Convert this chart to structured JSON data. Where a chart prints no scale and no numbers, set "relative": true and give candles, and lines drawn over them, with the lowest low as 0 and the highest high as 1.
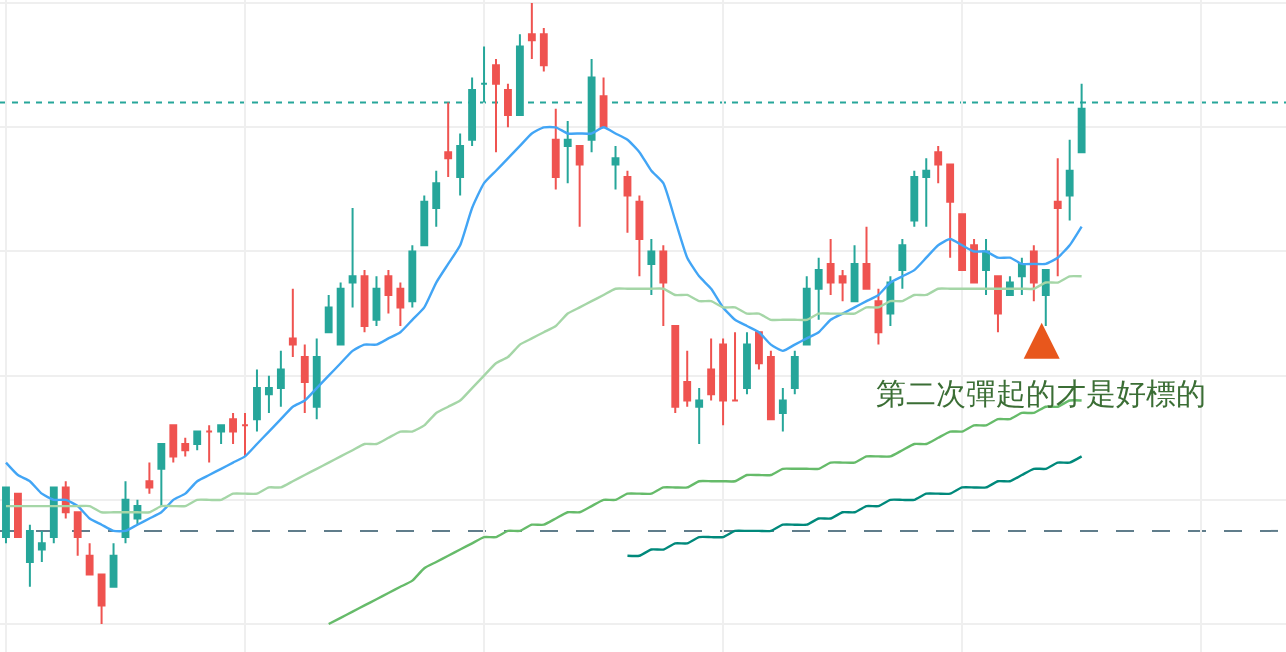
{
  "chart_data": {
    "type": "candlestick",
    "relative": true,
    "grid": true,
    "marker": "none",
    "categories": [
      null,
      null,
      null,
      null,
      null,
      null,
      null,
      null,
      null,
      null,
      null,
      null,
      null,
      null,
      null,
      null,
      null,
      null,
      null,
      null,
      null,
      null,
      null,
      null,
      null,
      null,
      null,
      null,
      null,
      null,
      null,
      null,
      null,
      null,
      null,
      null,
      null,
      null,
      null,
      null,
      null,
      null,
      null,
      null,
      null,
      null,
      null,
      null,
      null,
      null,
      null,
      null,
      null,
      null,
      null,
      null,
      null,
      null,
      null,
      null,
      null,
      null,
      null,
      null,
      null,
      null,
      null,
      null,
      null,
      null,
      null,
      null,
      null,
      null,
      null,
      null,
      null,
      null,
      null,
      null,
      null,
      null,
      null,
      null,
      null,
      null,
      null,
      null,
      null,
      null,
      null
    ],
    "ohlc": [
      [
        0.14,
        0.22,
        0.13,
        0.22
      ],
      [
        0.21,
        0.21,
        0.14,
        0.14
      ],
      [
        0.1,
        0.16,
        0.06,
        0.15
      ],
      [
        0.12,
        0.15,
        0.1,
        0.13
      ],
      [
        0.14,
        0.22,
        0.13,
        0.22
      ],
      [
        0.22,
        0.23,
        0.17,
        0.18
      ],
      [
        0.18,
        0.18,
        0.11,
        0.14
      ],
      [
        0.11,
        0.13,
        0.08,
        0.08
      ],
      [
        0.08,
        0.08,
        0,
        0.03
      ],
      [
        0.06,
        0.13,
        0.06,
        0.11
      ],
      [
        0.14,
        0.23,
        0.13,
        0.2
      ],
      [
        0.17,
        0.2,
        0.16,
        0.19
      ],
      [
        0.23,
        0.26,
        0.21,
        0.22
      ],
      [
        0.25,
        0.29,
        0.19,
        0.29
      ],
      [
        0.32,
        0.32,
        0.26,
        0.27
      ],
      [
        0.29,
        0.3,
        0.27,
        0.28
      ],
      [
        0.29,
        0.31,
        0.28,
        0.31
      ],
      [
        0.31,
        0.32,
        0.26,
        0.31
      ],
      [
        0.31,
        0.32,
        0.29,
        0.32
      ],
      [
        0.33,
        0.34,
        0.29,
        0.31
      ],
      [
        0.32,
        0.34,
        0.27,
        0.32
      ],
      [
        0.33,
        0.41,
        0.31,
        0.38
      ],
      [
        0.37,
        0.4,
        0.34,
        0.38
      ],
      [
        0.38,
        0.44,
        0.35,
        0.41
      ],
      [
        0.46,
        0.54,
        0.43,
        0.45
      ],
      [
        0.43,
        0.45,
        0.34,
        0.39
      ],
      [
        0.35,
        0.46,
        0.33,
        0.43
      ],
      [
        0.47,
        0.53,
        0.47,
        0.51
      ],
      [
        0.45,
        0.55,
        0.45,
        0.54
      ],
      [
        0.55,
        0.67,
        0.51,
        0.56
      ],
      [
        0.56,
        0.57,
        0.47,
        0.48
      ],
      [
        0.49,
        0.56,
        0.48,
        0.54
      ],
      [
        0.56,
        0.57,
        0.5,
        0.53
      ],
      [
        0.54,
        0.55,
        0.48,
        0.51
      ],
      [
        0.52,
        0.61,
        0.51,
        0.6
      ],
      [
        0.61,
        0.69,
        0.61,
        0.68
      ],
      [
        0.67,
        0.73,
        0.64,
        0.71
      ],
      [
        0.76,
        0.84,
        0.72,
        0.75
      ],
      [
        0.72,
        0.79,
        0.69,
        0.77
      ],
      [
        0.78,
        0.88,
        0.77,
        0.86
      ],
      [
        0.87,
        0.93,
        0.84,
        0.87
      ],
      [
        0.9,
        0.91,
        0.76,
        0.87
      ],
      [
        0.86,
        0.87,
        0.8,
        0.82
      ],
      [
        0.82,
        0.95,
        0.82,
        0.93
      ],
      [
        0.95,
        1,
        0.91,
        0.94
      ],
      [
        0.95,
        0.96,
        0.89,
        0.9
      ],
      [
        0.78,
        0.83,
        0.7,
        0.72
      ],
      [
        0.77,
        0.81,
        0.71,
        0.78
      ],
      [
        0.77,
        0.77,
        0.64,
        0.74
      ],
      [
        0.78,
        0.91,
        0.76,
        0.88
      ],
      [
        0.85,
        0.88,
        0.8,
        0.8
      ],
      [
        0.74,
        0.77,
        0.7,
        0.75
      ],
      [
        0.72,
        0.73,
        0.63,
        0.69
      ],
      [
        0.68,
        0.69,
        0.56,
        0.62
      ],
      [
        0.58,
        0.62,
        0.53,
        0.6
      ],
      [
        0.6,
        0.61,
        0.48,
        0.55
      ],
      [
        0.48,
        0.48,
        0.34,
        0.35
      ],
      [
        0.39,
        0.44,
        0.35,
        0.36
      ],
      [
        0.35,
        0.38,
        0.29,
        0.36
      ],
      [
        0.41,
        0.46,
        0.36,
        0.37
      ],
      [
        0.45,
        0.46,
        0.32,
        0.36
      ],
      [
        0.36,
        0.47,
        0.36,
        0.36
      ],
      [
        0.38,
        0.47,
        0.37,
        0.45
      ],
      [
        0.47,
        0.47,
        0.41,
        0.42
      ],
      [
        0.43,
        0.44,
        0.33,
        0.33
      ],
      [
        0.34,
        0.38,
        0.31,
        0.36
      ],
      [
        0.38,
        0.44,
        0.37,
        0.43
      ],
      [
        0.45,
        0.56,
        0.45,
        0.54
      ],
      [
        0.54,
        0.59,
        0.49,
        0.57
      ],
      [
        0.58,
        0.62,
        0.53,
        0.55
      ],
      [
        0.56,
        0.57,
        0.52,
        0.55
      ],
      [
        0.52,
        0.61,
        0.52,
        0.58
      ],
      [
        0.58,
        0.64,
        0.54,
        0.54
      ],
      [
        0.52,
        0.54,
        0.45,
        0.47
      ],
      [
        0.5,
        0.56,
        0.48,
        0.55
      ],
      [
        0.57,
        0.62,
        0.54,
        0.61
      ],
      [
        0.65,
        0.73,
        0.64,
        0.72
      ],
      [
        0.72,
        0.75,
        0.64,
        0.73
      ],
      [
        0.76,
        0.77,
        0.71,
        0.74
      ],
      [
        0.74,
        0.74,
        0.59,
        0.68
      ],
      [
        0.66,
        0.66,
        0.57,
        0.57
      ],
      [
        0.61,
        0.62,
        0.55,
        0.55
      ],
      [
        0.57,
        0.62,
        0.53,
        0.6
      ],
      [
        0.56,
        0.56,
        0.47,
        0.5
      ],
      [
        0.53,
        0.56,
        0.53,
        0.55
      ],
      [
        0.56,
        0.59,
        0.53,
        0.58
      ],
      [
        0.6,
        0.61,
        0.52,
        0.55
      ],
      [
        0.53,
        0.57,
        0.48,
        0.57
      ],
      [
        0.68,
        0.75,
        0.56,
        0.67
      ],
      [
        0.69,
        0.78,
        0.65,
        0.73
      ],
      [
        0.76,
        0.87,
        0.76,
        0.83
      ]
    ],
    "colors": [
      "#26a69a",
      "#ef5350",
      "#26a69a",
      "#26a69a",
      "#26a69a",
      "#ef5350",
      "#ef5350",
      "#ef5350",
      "#ef5350",
      "#26a69a",
      "#26a69a",
      "#26a69a",
      "#ef5350",
      "#26a69a",
      "#ef5350",
      "#ef5350",
      "#26a69a",
      "#ef5350",
      "#26a69a",
      "#ef5350",
      "#ef5350",
      "#26a69a",
      "#26a69a",
      "#26a69a",
      "#ef5350",
      "#ef5350",
      "#26a69a",
      "#26a69a",
      "#26a69a",
      "#26a69a",
      "#ef5350",
      "#26a69a",
      "#ef5350",
      "#ef5350",
      "#26a69a",
      "#26a69a",
      "#26a69a",
      "#ef5350",
      "#26a69a",
      "#26a69a",
      "#26a69a",
      "#ef5350",
      "#ef5350",
      "#26a69a",
      "#ef5350",
      "#ef5350",
      "#ef5350",
      "#26a69a",
      "#ef5350",
      "#26a69a",
      "#ef5350",
      "#26a69a",
      "#ef5350",
      "#ef5350",
      "#26a69a",
      "#ef5350",
      "#ef5350",
      "#ef5350",
      "#26a69a",
      "#ef5350",
      "#ef5350",
      "#ef5350",
      "#26a69a",
      "#ef5350",
      "#ef5350",
      "#26a69a",
      "#26a69a",
      "#26a69a",
      "#26a69a",
      "#ef5350",
      "#ef5350",
      "#26a69a",
      "#ef5350",
      "#ef5350",
      "#26a69a",
      "#26a69a",
      "#26a69a",
      "#26a69a",
      "#ef5350",
      "#ef5350",
      "#ef5350",
      "#ef5350",
      "#26a69a",
      "#ef5350",
      "#26a69a",
      "#26a69a",
      "#ef5350",
      "#26a69a",
      "#ef5350",
      "#26a69a",
      "#26a69a"
    ],
    "series": [
      {
        "type": "line",
        "color": "#42a5f5",
        "values": [
          0.26,
          0.24,
          0.23,
          0.21,
          0.2,
          0.2,
          0.19,
          0.17,
          0.16,
          0.15,
          0.15,
          0.16,
          0.17,
          0.18,
          0.2,
          0.21,
          0.23,
          0.24,
          0.25,
          0.26,
          0.27,
          0.29,
          0.31,
          0.33,
          0.35,
          0.36,
          0.38,
          0.4,
          0.42,
          0.44,
          0.45,
          0.45,
          0.46,
          0.47,
          0.49,
          0.51,
          0.55,
          0.58,
          0.61,
          0.67,
          0.71,
          0.73,
          0.75,
          0.77,
          0.79,
          0.8,
          0.8,
          0.79,
          0.79,
          0.79,
          0.8,
          0.79,
          0.78,
          0.76,
          0.73,
          0.71,
          0.65,
          0.59,
          0.56,
          0.54,
          0.51,
          0.49,
          0.48,
          0.47,
          0.45,
          0.44,
          0.45,
          0.46,
          0.47,
          0.49,
          0.5,
          0.51,
          0.52,
          0.53,
          0.55,
          0.56,
          0.57,
          0.59,
          0.61,
          0.62,
          0.61,
          0.6,
          0.6,
          0.59,
          0.59,
          0.58,
          0.58,
          0.58,
          0.59,
          0.61,
          0.64
        ]
      },
      {
        "type": "line",
        "color": "#a5d6a7",
        "values": [
          0.19,
          0.19,
          0.19,
          0.19,
          0.19,
          0.19,
          0.19,
          0.19,
          0.18,
          0.18,
          0.18,
          0.18,
          0.18,
          0.19,
          0.19,
          0.19,
          0.2,
          0.2,
          0.2,
          0.21,
          0.21,
          0.21,
          0.22,
          0.22,
          0.23,
          0.24,
          0.25,
          0.26,
          0.27,
          0.28,
          0.29,
          0.29,
          0.3,
          0.31,
          0.31,
          0.32,
          0.34,
          0.35,
          0.36,
          0.38,
          0.4,
          0.42,
          0.43,
          0.45,
          0.46,
          0.47,
          0.48,
          0.5,
          0.51,
          0.52,
          0.53,
          0.54,
          0.54,
          0.54,
          0.54,
          0.54,
          0.53,
          0.53,
          0.52,
          0.52,
          0.51,
          0.51,
          0.5,
          0.5,
          0.49,
          0.49,
          0.49,
          0.49,
          0.5,
          0.5,
          0.5,
          0.5,
          0.51,
          0.51,
          0.52,
          0.52,
          0.53,
          0.53,
          0.54,
          0.54,
          0.54,
          0.54,
          0.54,
          0.54,
          0.54,
          0.54,
          0.54,
          0.55,
          0.55,
          0.56,
          0.56
        ]
      },
      {
        "type": "line",
        "color": "#66bb6a",
        "values": [
          null,
          null,
          null,
          null,
          null,
          null,
          null,
          null,
          null,
          null,
          null,
          null,
          null,
          null,
          null,
          null,
          null,
          null,
          null,
          null,
          null,
          null,
          null,
          null,
          null,
          null,
          null,
          0,
          0.01,
          0.02,
          0.03,
          0.04,
          0.05,
          0.06,
          0.07,
          0.09,
          0.1,
          0.11,
          0.12,
          0.13,
          0.14,
          0.14,
          0.15,
          0.15,
          0.16,
          0.16,
          0.17,
          0.18,
          0.18,
          0.19,
          0.2,
          0.2,
          0.21,
          0.21,
          0.21,
          0.22,
          0.22,
          0.22,
          0.23,
          0.23,
          0.23,
          0.23,
          0.24,
          0.24,
          0.24,
          0.25,
          0.25,
          0.25,
          0.25,
          0.26,
          0.26,
          0.26,
          0.27,
          0.27,
          0.27,
          0.28,
          0.29,
          0.29,
          0.3,
          0.31,
          0.31,
          0.32,
          0.32,
          0.33,
          0.33,
          0.34,
          0.34,
          0.35,
          0.35,
          0.36,
          0.36
        ]
      },
      {
        "type": "line",
        "color": "#00897b",
        "values": [
          null,
          null,
          null,
          null,
          null,
          null,
          null,
          null,
          null,
          null,
          null,
          null,
          null,
          null,
          null,
          null,
          null,
          null,
          null,
          null,
          null,
          null,
          null,
          null,
          null,
          null,
          null,
          null,
          null,
          null,
          null,
          null,
          null,
          null,
          null,
          null,
          null,
          null,
          null,
          null,
          null,
          null,
          null,
          null,
          null,
          null,
          null,
          null,
          null,
          null,
          null,
          null,
          0.11,
          0.11,
          0.12,
          0.12,
          0.13,
          0.13,
          0.14,
          0.14,
          0.14,
          0.15,
          0.15,
          0.15,
          0.15,
          0.16,
          0.16,
          0.16,
          0.17,
          0.17,
          0.18,
          0.18,
          0.19,
          0.19,
          0.2,
          0.2,
          0.2,
          0.21,
          0.21,
          0.21,
          0.22,
          0.22,
          0.22,
          0.23,
          0.23,
          0.24,
          0.25,
          0.25,
          0.26,
          0.26,
          0.27
        ]
      }
    ],
    "ref_lines": [
      {
        "axis": "y",
        "value": 0.84,
        "color": "#26a69a",
        "line_style": "dotted"
      },
      {
        "axis": "y",
        "value": 0.15,
        "color": "#607d8b",
        "line_style": "dashed"
      }
    ],
    "annotations": [
      "第二次彈起的才是好標的"
    ]
  }
}
